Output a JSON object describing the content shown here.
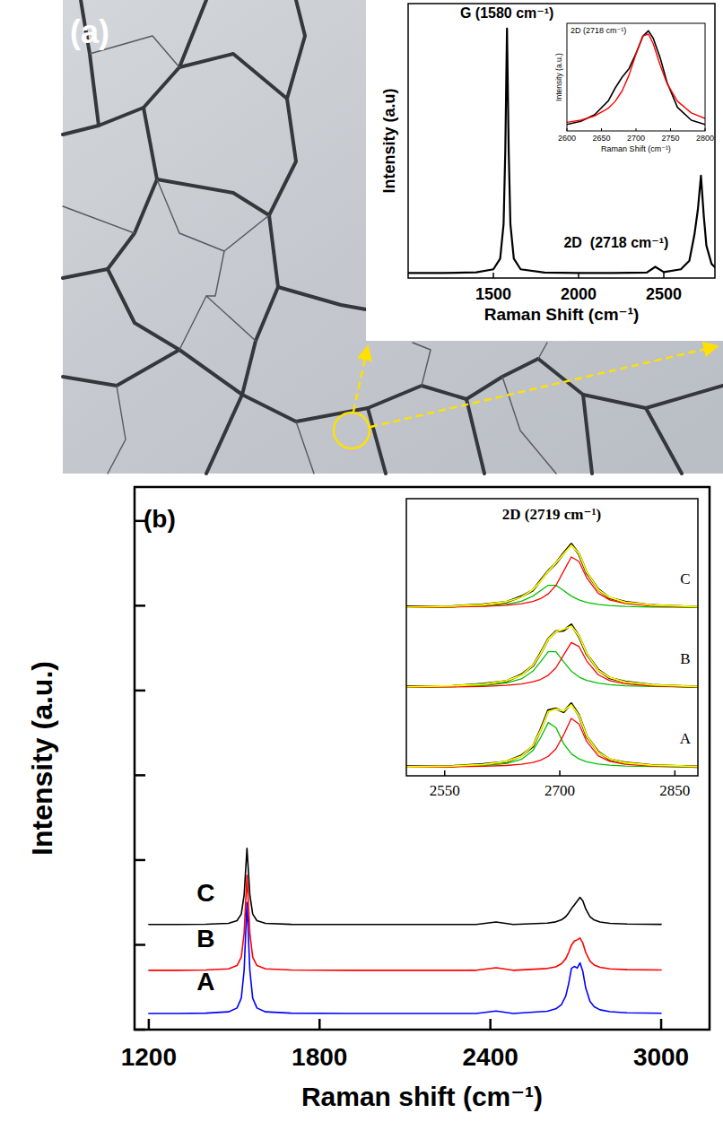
{
  "chart_data": [
    {
      "type": "line",
      "label": "(a)",
      "x_label": "Raman Shift (cm⁻¹)",
      "y_label": "Intensity (a.u)",
      "xlim": [
        1000,
        2800
      ],
      "xticks": [
        1500,
        2000,
        2500
      ],
      "ylim": [
        0,
        1.1
      ],
      "tick_labels": "x",
      "x": [
        1000,
        1200,
        1400,
        1500,
        1540,
        1560,
        1570,
        1580,
        1590,
        1600,
        1620,
        1660,
        1800,
        2000,
        2200,
        2400,
        2450,
        2500,
        2600,
        2650,
        2680,
        2700,
        2718,
        2735,
        2750,
        2780,
        2800
      ],
      "series": [
        {
          "color": "#000000",
          "values": [
            0.02,
            0.02,
            0.023,
            0.035,
            0.078,
            0.216,
            0.51,
            1.0,
            0.51,
            0.216,
            0.078,
            0.035,
            0.022,
            0.02,
            0.02,
            0.022,
            0.045,
            0.024,
            0.035,
            0.069,
            0.175,
            0.275,
            0.41,
            0.246,
            0.13,
            0.057,
            0.043
          ]
        }
      ],
      "annotations": [
        {
          "text": "G (1580 cm⁻¹)",
          "x": 1580,
          "y": 1.0
        },
        {
          "text": "2D  (2718 cm⁻¹)",
          "x": 2718,
          "y": 0.41
        }
      ]
    },
    {
      "type": "line",
      "title": "2D (2718 cm⁻¹)",
      "x_label": "Raman Shift (cm⁻¹)",
      "y_label": "Intensity (a.u.)",
      "xlim": [
        2600,
        2800
      ],
      "xticks": [
        2600,
        2650,
        2700,
        2750,
        2800
      ],
      "ylim": [
        0,
        1
      ],
      "tick_labels": "x",
      "x": [
        2600,
        2620,
        2640,
        2660,
        2670,
        2680,
        2690,
        2700,
        2710,
        2718,
        2725,
        2735,
        2745,
        2760,
        2780,
        2800
      ],
      "series": [
        {
          "color": "#000000",
          "values": [
            0.06,
            0.09,
            0.15,
            0.28,
            0.4,
            0.5,
            0.58,
            0.72,
            0.88,
            0.93,
            0.86,
            0.68,
            0.45,
            0.22,
            0.1,
            0.06
          ]
        },
        {
          "color": "#ff0000",
          "values": [
            0.08,
            0.1,
            0.138,
            0.211,
            0.276,
            0.373,
            0.52,
            0.714,
            0.883,
            0.9,
            0.81,
            0.613,
            0.44,
            0.276,
            0.168,
            0.116
          ]
        }
      ]
    },
    {
      "type": "line",
      "label": "(b)",
      "x_label": "Raman shift (cm⁻¹)",
      "y_label": "Intensity (a.u.)",
      "xlim": [
        1150,
        3170
      ],
      "xticks": [
        1200,
        1800,
        2400,
        3000
      ],
      "ylim": [
        0,
        6.4
      ],
      "yticks": [
        0,
        1,
        2,
        3,
        4,
        5,
        6
      ],
      "tick_labels": "x",
      "x": [
        1200,
        1300,
        1400,
        1480,
        1510,
        1525,
        1535,
        1545,
        1555,
        1565,
        1580,
        1610,
        1700,
        1900,
        2100,
        2350,
        2420,
        2480,
        2600,
        2630,
        2650,
        2665,
        2675,
        2685,
        2695,
        2705,
        2715,
        2725,
        2735,
        2750,
        2765,
        2785,
        2820,
        2880,
        3000
      ],
      "series": [
        {
          "name": "A",
          "color": "#0000ff",
          "values": [
            0.19,
            0.19,
            0.194,
            0.21,
            0.255,
            0.371,
            0.701,
            1.5,
            0.701,
            0.371,
            0.255,
            0.21,
            0.194,
            0.19,
            0.19,
            0.19,
            0.22,
            0.19,
            0.217,
            0.245,
            0.296,
            0.398,
            0.541,
            0.723,
            0.745,
            0.726,
            0.787,
            0.684,
            0.491,
            0.333,
            0.27,
            0.234,
            0.212,
            0.199,
            0.193
          ]
        },
        {
          "name": "B",
          "color": "#ff0000",
          "values": [
            0.7,
            0.7,
            0.703,
            0.717,
            0.756,
            0.855,
            1.137,
            1.82,
            1.137,
            0.855,
            0.756,
            0.717,
            0.703,
            0.7,
            0.7,
            0.7,
            0.73,
            0.7,
            0.721,
            0.741,
            0.777,
            0.837,
            0.91,
            0.998,
            1.044,
            1.059,
            1.08,
            1.02,
            0.91,
            0.808,
            0.762,
            0.735,
            0.717,
            0.707,
            0.703
          ]
        },
        {
          "name": "C",
          "color": "#000000",
          "values": [
            1.24,
            1.24,
            1.243,
            1.253,
            1.285,
            1.364,
            1.591,
            2.14,
            1.591,
            1.364,
            1.285,
            1.253,
            1.242,
            1.24,
            1.24,
            1.24,
            1.27,
            1.24,
            1.256,
            1.271,
            1.295,
            1.333,
            1.376,
            1.427,
            1.47,
            1.515,
            1.56,
            1.518,
            1.423,
            1.332,
            1.293,
            1.27,
            1.254,
            1.246,
            1.242
          ]
        }
      ]
    },
    {
      "type": "line",
      "title": "2D (2719 cm⁻¹)",
      "xlim": [
        2500,
        2880
      ],
      "xticks": [
        2550,
        2700,
        2850
      ],
      "ylim": [
        0,
        3.3
      ],
      "tick_labels": "x",
      "x": [
        2500,
        2560,
        2600,
        2630,
        2650,
        2665,
        2675,
        2685,
        2695,
        2705,
        2715,
        2725,
        2735,
        2750,
        2765,
        2785,
        2820,
        2880
      ],
      "series": [
        {
          "name": "A",
          "color": "#000000",
          "values": [
            0.112,
            0.115,
            0.138,
            0.166,
            0.24,
            0.35,
            0.55,
            0.78,
            0.8,
            0.76,
            0.86,
            0.72,
            0.47,
            0.285,
            0.195,
            0.158,
            0.124,
            0.108
          ]
        },
        {
          "color": "#ffff00",
          "values": [
            0.109,
            0.117,
            0.134,
            0.169,
            0.233,
            0.36,
            0.539,
            0.766,
            0.794,
            0.77,
            0.846,
            0.718,
            0.476,
            0.279,
            0.2,
            0.155,
            0.127,
            0.111
          ]
        },
        {
          "color": "#00c000",
          "values": [
            0.105,
            0.11,
            0.121,
            0.146,
            0.196,
            0.301,
            0.454,
            0.634,
            0.574,
            0.383,
            0.263,
            0.201,
            0.167,
            0.141,
            0.127,
            0.117,
            0.11,
            0.105
          ]
        },
        {
          "color": "#ff0000",
          "values": [
            0.104,
            0.107,
            0.113,
            0.123,
            0.137,
            0.159,
            0.185,
            0.232,
            0.32,
            0.487,
            0.683,
            0.617,
            0.409,
            0.238,
            0.173,
            0.138,
            0.117,
            0.107
          ]
        },
        {
          "name": "B",
          "color": "#000000",
          "values": [
            1.066,
            1.068,
            1.095,
            1.126,
            1.205,
            1.31,
            1.46,
            1.63,
            1.72,
            1.73,
            1.8,
            1.66,
            1.45,
            1.262,
            1.165,
            1.122,
            1.08,
            1.06
          ]
        },
        {
          "color": "#ffff00",
          "values": [
            1.061,
            1.071,
            1.091,
            1.13,
            1.198,
            1.315,
            1.455,
            1.626,
            1.715,
            1.744,
            1.784,
            1.667,
            1.456,
            1.258,
            1.17,
            1.118,
            1.083,
            1.064
          ]
        },
        {
          "color": "#00c000",
          "values": [
            1.056,
            1.063,
            1.075,
            1.103,
            1.154,
            1.246,
            1.357,
            1.478,
            1.478,
            1.357,
            1.246,
            1.177,
            1.137,
            1.103,
            1.086,
            1.073,
            1.063,
            1.056
          ]
        },
        {
          "color": "#ff0000",
          "values": [
            1.055,
            1.059,
            1.065,
            1.077,
            1.094,
            1.119,
            1.148,
            1.198,
            1.287,
            1.437,
            1.588,
            1.54,
            1.369,
            1.204,
            1.134,
            1.095,
            1.07,
            1.058
          ]
        },
        {
          "name": "C",
          "color": "#000000",
          "values": [
            2.015,
            2.018,
            2.04,
            2.068,
            2.135,
            2.21,
            2.325,
            2.44,
            2.53,
            2.65,
            2.76,
            2.64,
            2.42,
            2.22,
            2.118,
            2.072,
            2.03,
            2.01
          ]
        },
        {
          "color": "#ffff00",
          "values": [
            2.01,
            2.02,
            2.037,
            2.072,
            2.128,
            2.217,
            2.316,
            2.436,
            2.536,
            2.642,
            2.746,
            2.647,
            2.426,
            2.215,
            2.123,
            2.069,
            2.033,
            2.014
          ]
        },
        {
          "color": "#00c000",
          "values": [
            2.005,
            2.01,
            2.02,
            2.041,
            2.079,
            2.14,
            2.206,
            2.269,
            2.269,
            2.206,
            2.14,
            2.095,
            2.066,
            2.041,
            2.028,
            2.018,
            2.01,
            2.005
          ]
        },
        {
          "color": "#ff0000",
          "values": [
            2.005,
            2.01,
            2.017,
            2.03,
            2.049,
            2.077,
            2.11,
            2.167,
            2.267,
            2.436,
            2.606,
            2.552,
            2.36,
            2.174,
            2.095,
            2.051,
            2.023,
            2.009
          ]
        }
      ]
    }
  ]
}
